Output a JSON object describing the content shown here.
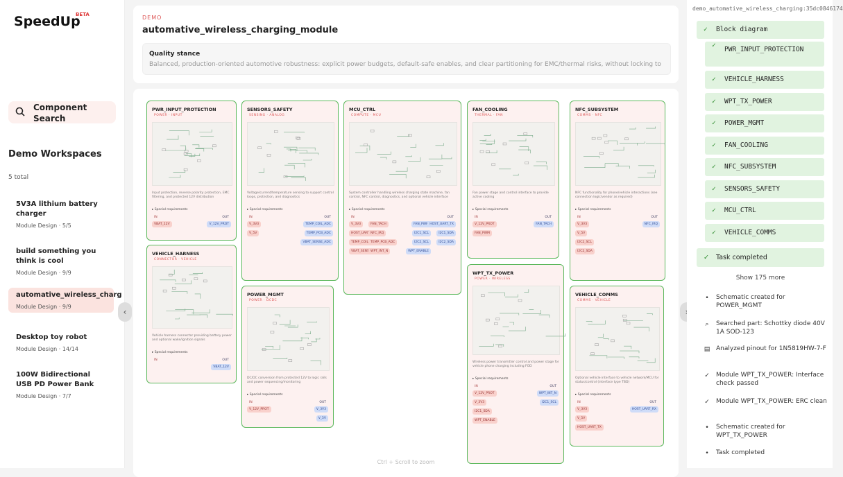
{
  "sidebar": {
    "brand": "SpeedUp",
    "badge": "BETA",
    "search": "Component Search",
    "workspaces_title": "Demo Workspaces",
    "count": "5 total",
    "workspaces": [
      {
        "title": "5V3A lithium battery charger",
        "subtitle": "Module Design · 5/5"
      },
      {
        "title": "build something you think is cool",
        "subtitle": "Module Design · 9/9"
      },
      {
        "title": "automative_wireless_charg",
        "subtitle": "Module Design · 9/9",
        "active": true
      },
      {
        "title": "Desktop toy robot",
        "subtitle": "Module Design · 14/14"
      },
      {
        "title": "100W Bidirectional USB PD Power Bank",
        "subtitle": "Module Design · 7/7"
      }
    ]
  },
  "header": {
    "label": "DEMO",
    "title": "automative_wireless_charging_module",
    "quality_title": "Quality stance",
    "quality_text": "Balanced, production-oriented automotive robustness: explicit power budgets, default-safe enables, and clear partitioning for EMC/thermal risks, without locking to"
  },
  "canvas": {
    "special_label": "▸ Special requirements",
    "in_label": "IN",
    "out_label": "OUT",
    "hint": "Ctrl + Scroll to zoom",
    "blocks": [
      {
        "name": "PWR_INPUT_PROTECTION",
        "tag": "POWER · INPUT",
        "description": "Input protection, reverse polarity protection, EMC filtering, and protected 12V distribution",
        "in": [
          "VBAT_12V"
        ],
        "out": [
          "V_12V_PROT"
        ]
      },
      {
        "name": "VEHICLE_HARNESS",
        "tag": "CONNECTOR · VEHICLE",
        "description": "Vehicle harness connector providing battery power and optional wake/ignition signals",
        "in": [],
        "out": [
          "VBAT_12V"
        ]
      },
      {
        "name": "SENSORS_SAFETY",
        "tag": "SENSING · ANALOG",
        "description": "Voltage/current/temperature sensing to support control loops, protection, and diagnostics",
        "in": [
          "V_3V3",
          "V_5V"
        ],
        "out": [
          "TEMP_COIL_ADC",
          "TEMP_PCB_ADC",
          "VBAT_SENSE_ADC"
        ]
      },
      {
        "name": "POWER_MGMT",
        "tag": "POWER · DCDC",
        "description": "DC/DC conversion from protected 12V to logic rails and power sequencing/monitoring",
        "in": [
          "V_12V_PROT"
        ],
        "out": [
          "V_3V3",
          "V_5V"
        ]
      },
      {
        "name": "MCU_CTRL",
        "tag": "COMPUTE · MCU",
        "description": "System controller handling wireless charging state machine, fan control, NFC control, diagnostics, and optional vehicle interface",
        "in": [
          "V_3V3",
          "FAN_TACH",
          "HOST_UART_RX",
          "NFC_IRQ",
          "TEMP_COIL_ADC",
          "TEMP_PCB_ADC",
          "VBAT_SENSE_ADC",
          "WPT_INT_N"
        ],
        "out": [
          "FAN_PWM",
          "HOST_UART_TX",
          "I2C1_SCL",
          "I2C1_SDA",
          "I2C2_SCL",
          "I2C2_SDA",
          "WPT_ENABLE"
        ]
      },
      {
        "name": "FAN_COOLING",
        "tag": "THERMAL · FAN",
        "description": "Fan power stage and control interface to provide active cooling",
        "in": [
          "V_12V_PROT",
          "FAN_PWM"
        ],
        "out": [
          "FAN_TACH"
        ]
      },
      {
        "name": "WPT_TX_POWER",
        "tag": "POWER · WIRELESS",
        "description": "Wireless power transmitter control and power stage for vehicle phone charging including FOD",
        "in": [
          "V_12V_PROT",
          "V_3V3",
          "I2C1_SDA",
          "WPT_ENABLE"
        ],
        "out": [
          "WPT_INT_N",
          "I2C1_SCL"
        ]
      },
      {
        "name": "NFC_SUBSYSTEM",
        "tag": "COMMS · NFC",
        "description": "NFC functionality for phone/vehicle interactions (see connection logic/vendor as required)",
        "in": [
          "V_3V3",
          "V_5V",
          "I2C2_SCL",
          "I2C2_SDA"
        ],
        "out": [
          "NFC_IRQ"
        ]
      },
      {
        "name": "VEHICLE_COMMS",
        "tag": "COMMS · VEHICLE",
        "description": "Optional vehicle interface to vehicle network/MCU for status/control (interface type TBD)",
        "in": [
          "V_3V3",
          "V_5V",
          "HOST_UART_TX"
        ],
        "out": [
          "HOST_UART_RX"
        ]
      }
    ]
  },
  "panel": {
    "session": "demo_automative_wireless_charging:35dc0846174",
    "checklist_title": "Block diagram",
    "checklist": [
      "PWR_INPUT_PROTECTION",
      "VEHICLE_HARNESS",
      "WPT_TX_POWER",
      "POWER_MGMT",
      "FAN_COOLING",
      "NFC_SUBSYSTEM",
      "SENSORS_SAFETY",
      "MCU_CTRL",
      "VEHICLE_COMMS"
    ],
    "task_completed": "Task completed",
    "show_more": "Show 175 more",
    "log": [
      {
        "icon": "dot",
        "text": "Schematic created for POWER_MGMT"
      },
      {
        "icon": "search",
        "text": "Searched part: Schottky diode 40V 1A SOD-123"
      },
      {
        "icon": "doc",
        "text": "Analyzed pinout for 1N5819HW-7-F"
      },
      {
        "icon": "check",
        "text": "Module WPT_TX_POWER: Interface check passed"
      },
      {
        "icon": "check",
        "text": "Module WPT_TX_POWER: ERC clean"
      },
      {
        "icon": "dot",
        "text": "Schematic created for WPT_TX_POWER"
      },
      {
        "icon": "dot",
        "text": "Task completed"
      }
    ]
  }
}
